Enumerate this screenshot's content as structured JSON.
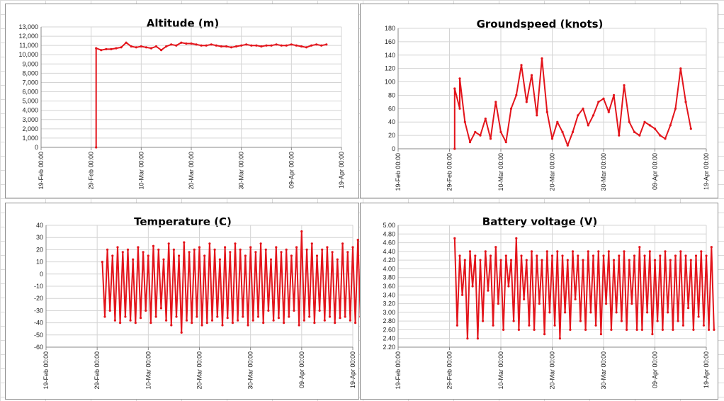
{
  "chart_data": [
    {
      "type": "line",
      "title": "Altitude (m)",
      "ylim": [
        0,
        13000
      ],
      "ystep": 1000,
      "y_tick_labels": [
        "0",
        "1,000",
        "2,000",
        "3,000",
        "4,000",
        "5,000",
        "6,000",
        "7,000",
        "8,000",
        "9,000",
        "10,000",
        "11,000",
        "12,000",
        "13,000"
      ],
      "xlim": [
        "2016-02-19",
        "2016-04-19"
      ],
      "x_tick_labels": [
        "19-Feb 00:00",
        "29-Feb 00:00",
        "10-Mar 00:00",
        "20-Mar 00:00",
        "30-Mar 00:00",
        "09-Apr 00:00",
        "19-Apr 00:00"
      ],
      "color": "#e3141b",
      "grid": true,
      "series": [
        {
          "x": [
            "2016-03-01",
            "2016-03-01",
            "2016-03-02",
            "2016-03-03",
            "2016-03-04",
            "2016-03-05",
            "2016-03-06",
            "2016-03-07",
            "2016-03-08",
            "2016-03-09",
            "2016-03-10",
            "2016-03-11",
            "2016-03-12",
            "2016-03-13",
            "2016-03-14",
            "2016-03-15",
            "2016-03-16",
            "2016-03-17",
            "2016-03-18",
            "2016-03-19",
            "2016-03-20",
            "2016-03-21",
            "2016-03-22",
            "2016-03-23",
            "2016-03-24",
            "2016-03-25",
            "2016-03-26",
            "2016-03-27",
            "2016-03-28",
            "2016-03-29",
            "2016-03-30",
            "2016-03-31",
            "2016-04-01",
            "2016-04-02",
            "2016-04-03",
            "2016-04-04",
            "2016-04-05",
            "2016-04-06",
            "2016-04-07",
            "2016-04-08",
            "2016-04-09",
            "2016-04-10",
            "2016-04-11",
            "2016-04-12",
            "2016-04-13",
            "2016-04-14",
            "2016-04-15",
            "2016-04-16"
          ],
          "y": [
            0,
            10700,
            10500,
            10600,
            10600,
            10700,
            10800,
            11300,
            10900,
            10800,
            10900,
            10800,
            10700,
            10900,
            10500,
            10900,
            11100,
            11000,
            11300,
            11200,
            11200,
            11100,
            11000,
            11000,
            11100,
            11000,
            10900,
            10900,
            10800,
            10900,
            11000,
            11100,
            11000,
            11000,
            10900,
            11000,
            11000,
            11100,
            11000,
            11000,
            11100,
            11000,
            10900,
            10800,
            11000,
            11100,
            11000,
            11100
          ]
        }
      ]
    },
    {
      "type": "line",
      "title": "Groundspeed (knots)",
      "ylim": [
        0,
        180
      ],
      "ystep": 20,
      "y_tick_labels": [
        "0",
        "20",
        "40",
        "60",
        "80",
        "100",
        "120",
        "140",
        "160",
        "180"
      ],
      "xlim": [
        "2016-02-19",
        "2016-04-19"
      ],
      "x_tick_labels": [
        "19-Feb 00:00",
        "29-Feb 00:00",
        "10-Mar 00:00",
        "20-Mar 00:00",
        "30-Mar 00:00",
        "09-Apr 00:00",
        "19-Apr 00:00"
      ],
      "color": "#e3141b",
      "grid": true,
      "series": [
        {
          "x": [
            "2016-03-01",
            "2016-03-01",
            "2016-03-02",
            "2016-03-02",
            "2016-03-03",
            "2016-03-04",
            "2016-03-05",
            "2016-03-06",
            "2016-03-07",
            "2016-03-08",
            "2016-03-09",
            "2016-03-10",
            "2016-03-11",
            "2016-03-12",
            "2016-03-13",
            "2016-03-14",
            "2016-03-15",
            "2016-03-16",
            "2016-03-17",
            "2016-03-18",
            "2016-03-19",
            "2016-03-20",
            "2016-03-21",
            "2016-03-22",
            "2016-03-23",
            "2016-03-24",
            "2016-03-25",
            "2016-03-26",
            "2016-03-27",
            "2016-03-28",
            "2016-03-29",
            "2016-03-30",
            "2016-03-31",
            "2016-04-01",
            "2016-04-02",
            "2016-04-03",
            "2016-04-04",
            "2016-04-05",
            "2016-04-06",
            "2016-04-07",
            "2016-04-08",
            "2016-04-09",
            "2016-04-10",
            "2016-04-11",
            "2016-04-12",
            "2016-04-13",
            "2016-04-14",
            "2016-04-15",
            "2016-04-16"
          ],
          "y": [
            0,
            90,
            60,
            105,
            40,
            10,
            25,
            20,
            45,
            15,
            70,
            25,
            10,
            60,
            80,
            125,
            70,
            110,
            50,
            135,
            55,
            15,
            40,
            25,
            5,
            25,
            50,
            60,
            35,
            50,
            70,
            75,
            55,
            80,
            20,
            95,
            40,
            25,
            20,
            40,
            35,
            30,
            20,
            15,
            35,
            60,
            120,
            70,
            30
          ]
        }
      ]
    },
    {
      "type": "line",
      "title": "Temperature (C)",
      "ylim": [
        -60,
        40
      ],
      "ystep": 10,
      "y_tick_labels": [
        "-60",
        "-50",
        "-40",
        "-30",
        "-20",
        "-10",
        "0",
        "10",
        "20",
        "30",
        "40"
      ],
      "xlim": [
        "2016-02-19",
        "2016-04-19"
      ],
      "x_tick_labels": [
        "19-Feb 00:00",
        "29-Feb 00:00",
        "10-Mar 00:00",
        "20-Mar 00:00",
        "30-Mar 00:00",
        "09-Apr 00:00",
        "19-Apr 00:00"
      ],
      "color": "#e3141b",
      "grid": true,
      "series": [
        {
          "x_start": "2016-03-01",
          "x_step_days": 0.5,
          "y": [
            10,
            -35,
            20,
            -30,
            15,
            -38,
            22,
            -40,
            18,
            -35,
            20,
            -38,
            12,
            -40,
            22,
            -36,
            18,
            -30,
            15,
            -40,
            23,
            -35,
            20,
            -28,
            12,
            -38,
            25,
            -42,
            20,
            -35,
            15,
            -48,
            26,
            -38,
            18,
            -40,
            20,
            -35,
            22,
            -42,
            15,
            -40,
            25,
            -38,
            20,
            -35,
            12,
            -42,
            22,
            -36,
            18,
            -40,
            25,
            -38,
            20,
            -35,
            15,
            -42,
            22,
            -38,
            18,
            -35,
            25,
            -40,
            20,
            -30,
            12,
            -38,
            22,
            -36,
            18,
            -40,
            20,
            -35,
            15,
            -30,
            22,
            -42,
            35,
            -38,
            20,
            -35,
            25,
            -40,
            15,
            -30,
            20,
            -38,
            22,
            -35,
            18,
            -40,
            12,
            -36,
            25,
            -35,
            18,
            -38,
            22,
            -40,
            28,
            -35,
            20,
            -36,
            29,
            -34
          ]
        }
      ]
    },
    {
      "type": "line",
      "title": "Battery voltage (V)",
      "ylim": [
        2.2,
        5.0
      ],
      "ystep": 0.2,
      "y_tick_labels": [
        "2.20",
        "2.40",
        "2.60",
        "2.80",
        "3.00",
        "3.20",
        "3.40",
        "3.60",
        "3.80",
        "4.00",
        "4.20",
        "4.40",
        "4.60",
        "4.80",
        "5.00"
      ],
      "xlim": [
        "2016-02-19",
        "2016-04-19"
      ],
      "x_tick_labels": [
        "19-Feb 00:00",
        "29-Feb 00:00",
        "10-Mar 00:00",
        "20-Mar 00:00",
        "30-Mar 00:00",
        "09-Apr 00:00",
        "19-Apr 00:00"
      ],
      "color": "#e3141b",
      "grid": true,
      "series": [
        {
          "x_start": "2016-03-01",
          "x_step_days": 0.5,
          "y": [
            4.7,
            2.7,
            4.3,
            3.4,
            4.2,
            2.4,
            4.4,
            3.6,
            4.3,
            2.4,
            4.2,
            2.8,
            4.4,
            3.5,
            4.3,
            2.7,
            4.5,
            3.2,
            4.2,
            2.6,
            4.3,
            3.6,
            4.2,
            2.8,
            4.7,
            2.6,
            4.3,
            3.3,
            4.2,
            2.7,
            4.4,
            2.6,
            4.3,
            3.2,
            4.2,
            2.5,
            4.4,
            3.0,
            4.3,
            2.7,
            4.4,
            2.4,
            4.3,
            3.0,
            4.2,
            2.6,
            4.4,
            3.3,
            4.3,
            2.8,
            4.2,
            2.6,
            4.4,
            3.0,
            4.3,
            2.7,
            4.4,
            2.5,
            4.3,
            3.2,
            4.4,
            2.6,
            4.2,
            3.0,
            4.3,
            2.8,
            4.4,
            2.6,
            4.2,
            3.2,
            4.3,
            2.6,
            4.5,
            2.6,
            4.3,
            3.0,
            4.4,
            2.5,
            4.2,
            2.8,
            4.3,
            2.6,
            4.4,
            3.0,
            4.2,
            2.6,
            4.3,
            2.8,
            4.4,
            2.7,
            4.3,
            3.1,
            4.2,
            2.6,
            4.3,
            2.9,
            4.4,
            2.7,
            4.3,
            2.6,
            4.5,
            2.6
          ]
        }
      ]
    }
  ]
}
